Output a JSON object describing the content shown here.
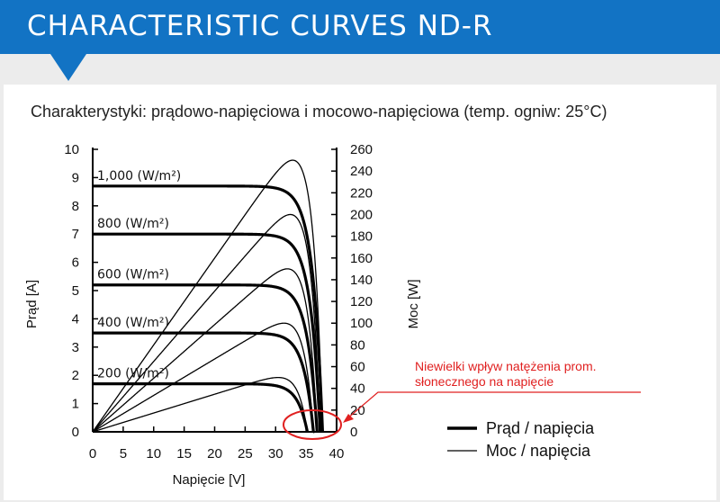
{
  "header": {
    "title": "CHARACTERISTIC CURVES ND-R",
    "color": "#1273c4"
  },
  "subtitle": "Charakterystyki: prądowo-napięciowa i mocowo-napięciowa (temp. ogniw: 25°C)",
  "chart_data": {
    "type": "line",
    "xlabel": "Napięcie [V]",
    "ylabel": "Prąd [A]",
    "y2label": "Moc [W]",
    "xlim": [
      0,
      40
    ],
    "ylim": [
      0,
      10
    ],
    "y2lim": [
      0,
      260
    ],
    "x_ticks": [
      "0",
      "5",
      "10",
      "15",
      "20",
      "25",
      "30",
      "35",
      "40"
    ],
    "y_ticks": [
      "0",
      "1",
      "2",
      "3",
      "4",
      "5",
      "6",
      "7",
      "8",
      "9",
      "10"
    ],
    "y2_ticks": [
      "0",
      "20",
      "40",
      "60",
      "80",
      "100",
      "120",
      "140",
      "160",
      "180",
      "200",
      "220",
      "240",
      "260"
    ],
    "grid": false,
    "curves": [
      {
        "irradiance_label": "1,000 (W/m²)",
        "isc": 8.7,
        "voc": 37.7,
        "pmax": 250,
        "vmp": 31.4
      },
      {
        "irradiance_label": "800 (W/m²)",
        "isc": 7.0,
        "voc": 37.3,
        "pmax": 200,
        "vmp": 31.0
      },
      {
        "irradiance_label": "600 (W/m²)",
        "isc": 5.2,
        "voc": 36.8,
        "pmax": 150,
        "vmp": 30.6
      },
      {
        "irradiance_label": "400 (W/m²)",
        "isc": 3.5,
        "voc": 36.2,
        "pmax": 100,
        "vmp": 30.2
      },
      {
        "irradiance_label": "200 (W/m²)",
        "isc": 1.7,
        "voc": 35.2,
        "pmax": 50,
        "vmp": 29.6
      }
    ],
    "legend": {
      "position": "bottom-right",
      "entries": [
        {
          "label": "Prąd / napięcia",
          "style": "thick"
        },
        {
          "label": "Moc / napięcia",
          "style": "thin"
        }
      ]
    },
    "annotation": {
      "lines": [
        "Niewielki wpływ natężenia prom.",
        "słonecznego na napięcie"
      ],
      "color": "#e02020"
    }
  }
}
